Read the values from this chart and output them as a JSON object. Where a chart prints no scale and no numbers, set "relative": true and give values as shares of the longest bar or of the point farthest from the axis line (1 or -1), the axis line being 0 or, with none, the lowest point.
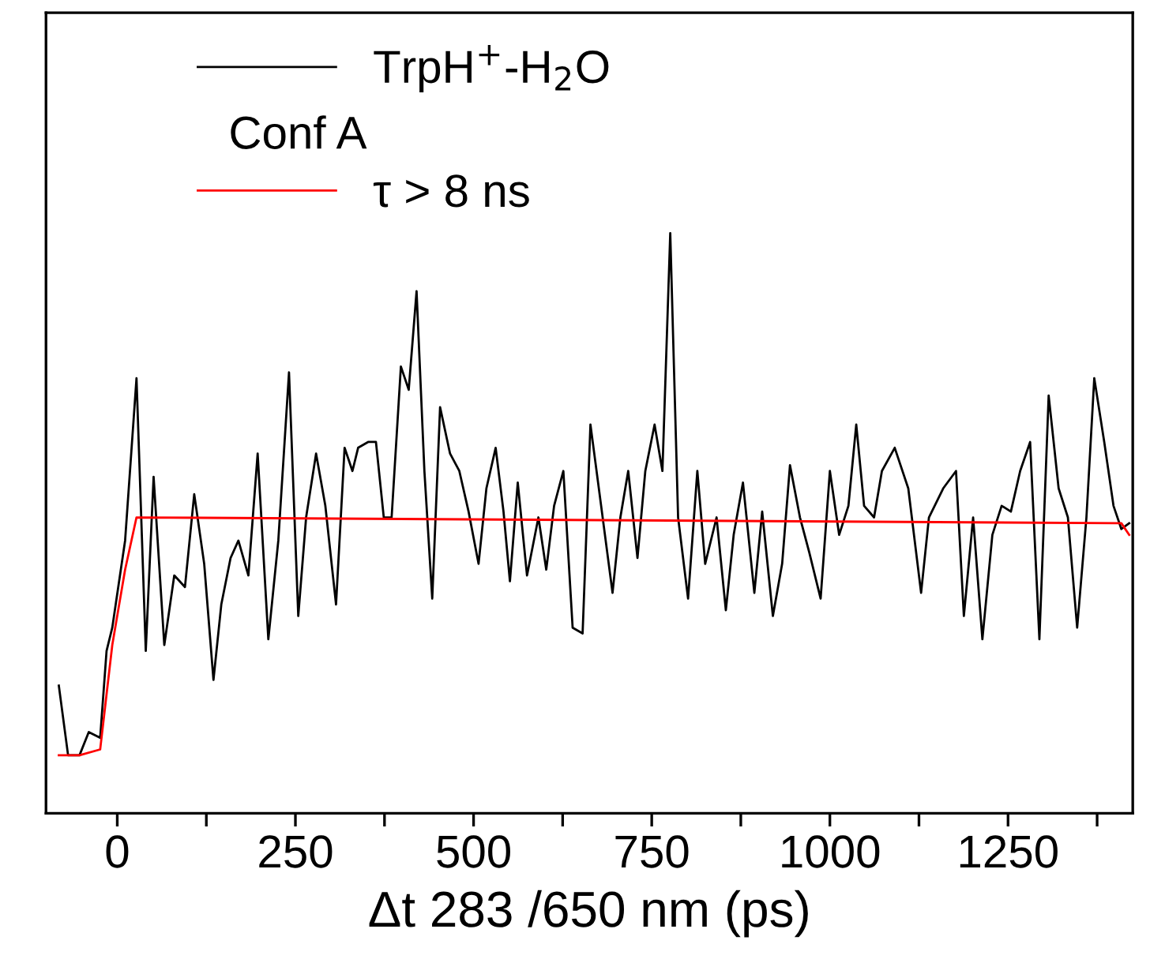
{
  "chart_data": {
    "type": "line",
    "relative": true,
    "xlabel": "Δt 283 /650 nm (ps)",
    "xlim": [
      -100,
      1425
    ],
    "xticks": [
      0,
      {
        "value": 125,
        "label": null
      },
      250,
      {
        "value": 375,
        "label": null
      },
      500,
      {
        "value": 625,
        "label": null
      },
      750,
      {
        "value": 875,
        "label": null
      },
      1000,
      {
        "value": 1125,
        "label": null
      },
      1250,
      {
        "value": 1375,
        "label": null
      }
    ],
    "tick_labels": "x",
    "grid": false,
    "legend": "top left",
    "marker": "none",
    "line_style": "solid",
    "annotations": [
      "Conf A"
    ],
    "series": [
      {
        "name": "TrpH$^{+}$-H$_{2}$O",
        "color": "#000000",
        "x": [
          -82,
          -69,
          -53,
          -40,
          -24,
          -15,
          -7,
          11,
          27,
          40,
          51,
          66,
          80,
          95,
          108,
          122,
          135,
          146,
          159,
          170,
          184,
          197,
          212,
          226,
          241,
          254,
          265,
          279,
          292,
          307,
          319,
          330,
          338,
          352,
          363,
          374,
          385,
          398,
          409,
          420,
          431,
          442,
          453,
          467,
          480,
          493,
          507,
          518,
          531,
          542,
          551,
          562,
          575,
          591,
          602,
          613,
          626,
          639,
          653,
          664,
          679,
          695,
          706,
          717,
          730,
          741,
          754,
          765,
          776,
          787,
          801,
          814,
          825,
          841,
          854,
          865,
          878,
          894,
          905,
          920,
          933,
          944,
          958,
          971,
          987,
          1000,
          1013,
          1026,
          1037,
          1048,
          1062,
          1073,
          1091,
          1110,
          1128,
          1139,
          1159,
          1177,
          1188,
          1201,
          1214,
          1228,
          1241,
          1254,
          1267,
          1281,
          1294,
          1307,
          1321,
          1334,
          1347,
          1360,
          1371,
          1385,
          1398,
          1409,
          1420
        ],
        "values": [
          0.22,
          0.1,
          0.1,
          0.14,
          0.13,
          0.28,
          0.32,
          0.47,
          0.75,
          0.28,
          0.58,
          0.29,
          0.41,
          0.39,
          0.55,
          0.43,
          0.23,
          0.36,
          0.44,
          0.47,
          0.41,
          0.62,
          0.3,
          0.47,
          0.76,
          0.34,
          0.51,
          0.62,
          0.53,
          0.36,
          0.63,
          0.59,
          0.63,
          0.64,
          0.64,
          0.51,
          0.51,
          0.77,
          0.73,
          0.9,
          0.59,
          0.37,
          0.7,
          0.62,
          0.59,
          0.52,
          0.43,
          0.56,
          0.63,
          0.52,
          0.4,
          0.57,
          0.41,
          0.51,
          0.42,
          0.53,
          0.59,
          0.32,
          0.31,
          0.67,
          0.53,
          0.38,
          0.51,
          0.59,
          0.44,
          0.59,
          0.67,
          0.59,
          1.0,
          0.51,
          0.37,
          0.59,
          0.43,
          0.51,
          0.35,
          0.48,
          0.57,
          0.38,
          0.52,
          0.34,
          0.43,
          0.6,
          0.51,
          0.45,
          0.37,
          0.59,
          0.48,
          0.53,
          0.67,
          0.53,
          0.51,
          0.59,
          0.63,
          0.56,
          0.38,
          0.51,
          0.56,
          0.59,
          0.34,
          0.51,
          0.3,
          0.48,
          0.53,
          0.52,
          0.59,
          0.64,
          0.3,
          0.72,
          0.56,
          0.51,
          0.32,
          0.51,
          0.75,
          0.64,
          0.53,
          0.49,
          0.5
        ]
      },
      {
        "name": "τ > 8 ns",
        "color": "#ff0000",
        "x": [
          -82,
          -53,
          -24,
          -7,
          11,
          27,
          1409,
          1420
        ],
        "values": [
          0.1,
          0.1,
          0.11,
          0.29,
          0.42,
          0.51,
          0.5,
          0.48
        ]
      }
    ]
  }
}
